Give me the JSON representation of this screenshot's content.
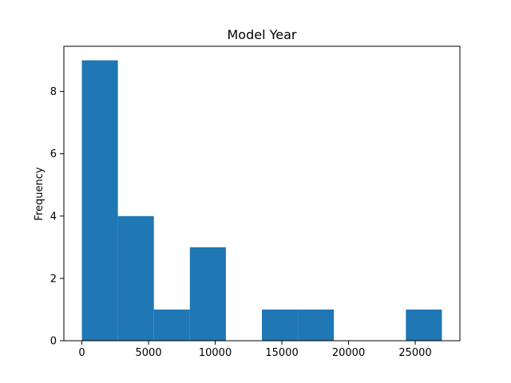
{
  "chart_data": {
    "type": "bar",
    "title": "Model Year",
    "xlabel": "",
    "ylabel": "Frequency",
    "bin_edges": [
      0,
      2700,
      5400,
      8100,
      10800,
      13500,
      16200,
      18900,
      21600,
      24300,
      27000
    ],
    "counts": [
      9,
      4,
      1,
      3,
      0,
      1,
      1,
      0,
      0,
      1
    ],
    "xlim": [
      -1350,
      28350
    ],
    "ylim": [
      0,
      9.45
    ],
    "x_ticks": [
      0,
      5000,
      10000,
      15000,
      20000,
      25000
    ],
    "y_ticks": [
      0,
      2,
      4,
      6,
      8
    ],
    "grid": false,
    "bar_color": "#1f77b4"
  }
}
